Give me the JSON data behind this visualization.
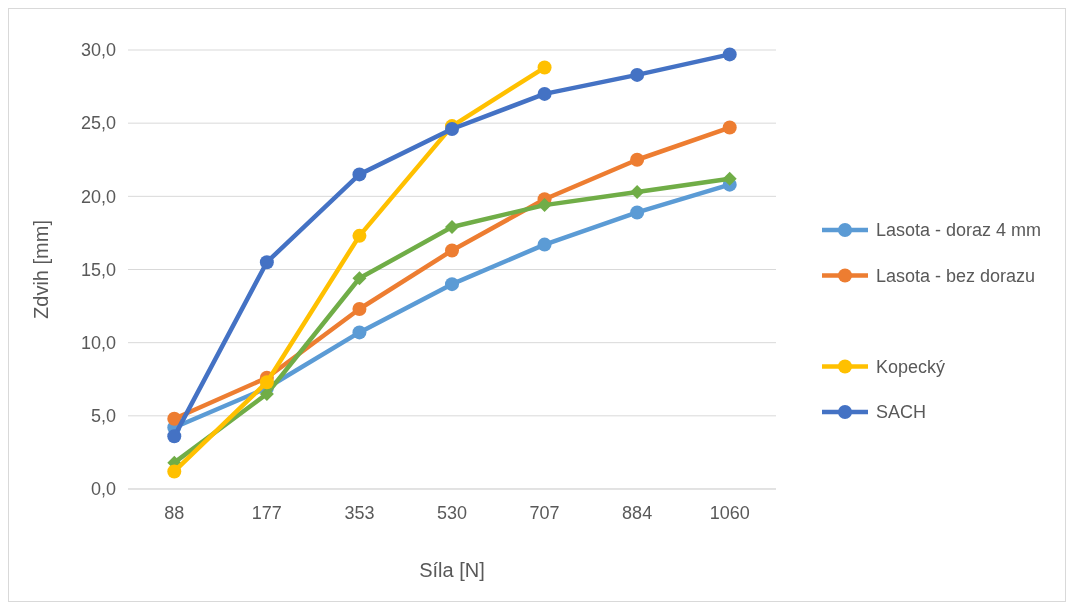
{
  "chart_data": {
    "type": "line",
    "xlabel": "Síla [N]",
    "ylabel": "Zdvih [mm]",
    "categories": [
      "88",
      "177",
      "353",
      "530",
      "707",
      "884",
      "1060"
    ],
    "ylim": [
      0,
      30
    ],
    "yticks": [
      {
        "value": 0,
        "label": "0,0"
      },
      {
        "value": 5,
        "label": "5,0"
      },
      {
        "value": 10,
        "label": "10,0"
      },
      {
        "value": 15,
        "label": "15,0"
      },
      {
        "value": 20,
        "label": "20,0"
      },
      {
        "value": 25,
        "label": "25,0"
      },
      {
        "value": 30,
        "label": "30,0"
      }
    ],
    "grid": "y",
    "legend": "right",
    "marker": "circle",
    "line_style": "solid",
    "series": [
      {
        "name": "Lasota - doraz 4 mm",
        "color": "#5b9bd5",
        "values": [
          4.2,
          6.9,
          10.7,
          14.0,
          16.7,
          18.9,
          20.8
        ]
      },
      {
        "name": "Lasota - bez dorazu",
        "color": "#ed7d31",
        "values": [
          4.8,
          7.6,
          12.3,
          16.3,
          19.8,
          22.5,
          24.7
        ]
      },
      {
        "color": "#70ad47",
        "marker": "diamond",
        "values": [
          1.8,
          6.5,
          14.4,
          17.9,
          19.4,
          20.3,
          21.2
        ]
      },
      {
        "name": "Kopecký",
        "color": "#ffc000",
        "values": [
          1.2,
          7.3,
          17.3,
          24.8,
          28.8,
          null,
          null
        ]
      },
      {
        "name": "SACH",
        "color": "#4472c4",
        "values": [
          3.6,
          15.5,
          21.5,
          24.6,
          27.0,
          28.3,
          29.7
        ]
      }
    ]
  }
}
